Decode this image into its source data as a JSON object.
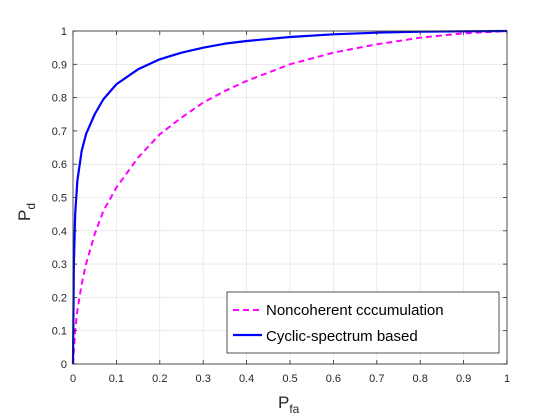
{
  "chart_data": {
    "type": "line",
    "xlabel": {
      "base": "P",
      "sub": "fa"
    },
    "ylabel": {
      "base": "P",
      "sub": "d"
    },
    "xlim": [
      0,
      1
    ],
    "ylim": [
      0,
      1
    ],
    "x_ticks": [
      "0",
      "0.1",
      "0.2",
      "0.3",
      "0.4",
      "0.5",
      "0.6",
      "0.7",
      "0.8",
      "0.9",
      "1"
    ],
    "y_ticks": [
      "0",
      "0.1",
      "0.2",
      "0.3",
      "0.4",
      "0.5",
      "0.6",
      "0.7",
      "0.8",
      "0.9",
      "1"
    ],
    "grid": true,
    "legend_position": "bottom-right",
    "series": [
      {
        "name": "Noncoherent cccumulation",
        "color": "#ff00ff",
        "style": "dashed",
        "x": [
          0,
          0.005,
          0.01,
          0.02,
          0.03,
          0.05,
          0.07,
          0.1,
          0.15,
          0.2,
          0.25,
          0.3,
          0.35,
          0.4,
          0.45,
          0.5,
          0.6,
          0.7,
          0.8,
          0.9,
          1.0
        ],
        "y": [
          0,
          0.1,
          0.16,
          0.24,
          0.3,
          0.39,
          0.46,
          0.53,
          0.62,
          0.69,
          0.74,
          0.785,
          0.82,
          0.85,
          0.875,
          0.9,
          0.935,
          0.96,
          0.98,
          0.993,
          1.0
        ]
      },
      {
        "name": "Cyclic-spectrum based",
        "color": "#0000ff",
        "style": "solid",
        "x": [
          0,
          0.002,
          0.005,
          0.01,
          0.02,
          0.03,
          0.05,
          0.07,
          0.1,
          0.15,
          0.2,
          0.25,
          0.3,
          0.35,
          0.4,
          0.5,
          0.6,
          0.7,
          0.8,
          0.9,
          1.0
        ],
        "y": [
          0,
          0.3,
          0.45,
          0.55,
          0.64,
          0.69,
          0.75,
          0.795,
          0.84,
          0.885,
          0.915,
          0.935,
          0.95,
          0.962,
          0.97,
          0.982,
          0.99,
          0.995,
          0.998,
          0.999,
          1.0
        ]
      }
    ]
  }
}
